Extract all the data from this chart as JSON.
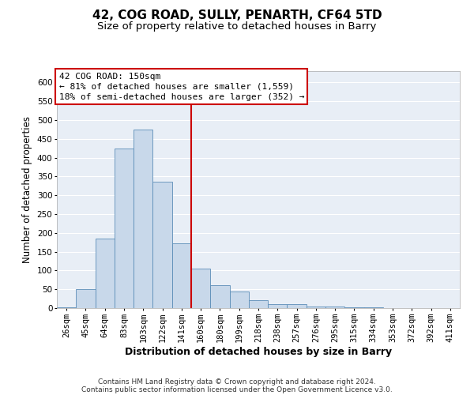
{
  "title": "42, COG ROAD, SULLY, PENARTH, CF64 5TD",
  "subtitle": "Size of property relative to detached houses in Barry",
  "xlabel": "Distribution of detached houses by size in Barry",
  "ylabel": "Number of detached properties",
  "footer_line1": "Contains HM Land Registry data © Crown copyright and database right 2024.",
  "footer_line2": "Contains public sector information licensed under the Open Government Licence v3.0.",
  "annotation_line1": "42 COG ROAD: 150sqm",
  "annotation_line2": "← 81% of detached houses are smaller (1,559)",
  "annotation_line3": "18% of semi-detached houses are larger (352) →",
  "bar_color": "#c8d8ea",
  "bar_edge_color": "#5b8db8",
  "vline_color": "#cc0000",
  "annotation_box_color": "#ffffff",
  "annotation_box_edge": "#cc0000",
  "background_color": "#e8eef6",
  "grid_color": "#ffffff",
  "categories": [
    "26sqm",
    "45sqm",
    "64sqm",
    "83sqm",
    "103sqm",
    "122sqm",
    "141sqm",
    "160sqm",
    "180sqm",
    "199sqm",
    "218sqm",
    "238sqm",
    "257sqm",
    "276sqm",
    "295sqm",
    "315sqm",
    "334sqm",
    "353sqm",
    "372sqm",
    "392sqm",
    "411sqm"
  ],
  "values": [
    3,
    50,
    185,
    425,
    475,
    335,
    172,
    105,
    60,
    45,
    22,
    10,
    10,
    5,
    5,
    3,
    2,
    1,
    1,
    1,
    1
  ],
  "vline_x": 6.5,
  "ylim": [
    0,
    630
  ],
  "yticks": [
    0,
    50,
    100,
    150,
    200,
    250,
    300,
    350,
    400,
    450,
    500,
    550,
    600
  ],
  "title_fontsize": 11,
  "subtitle_fontsize": 9.5,
  "xlabel_fontsize": 9,
  "ylabel_fontsize": 8.5,
  "tick_fontsize": 7.5,
  "annotation_fontsize": 8,
  "footer_fontsize": 6.5
}
